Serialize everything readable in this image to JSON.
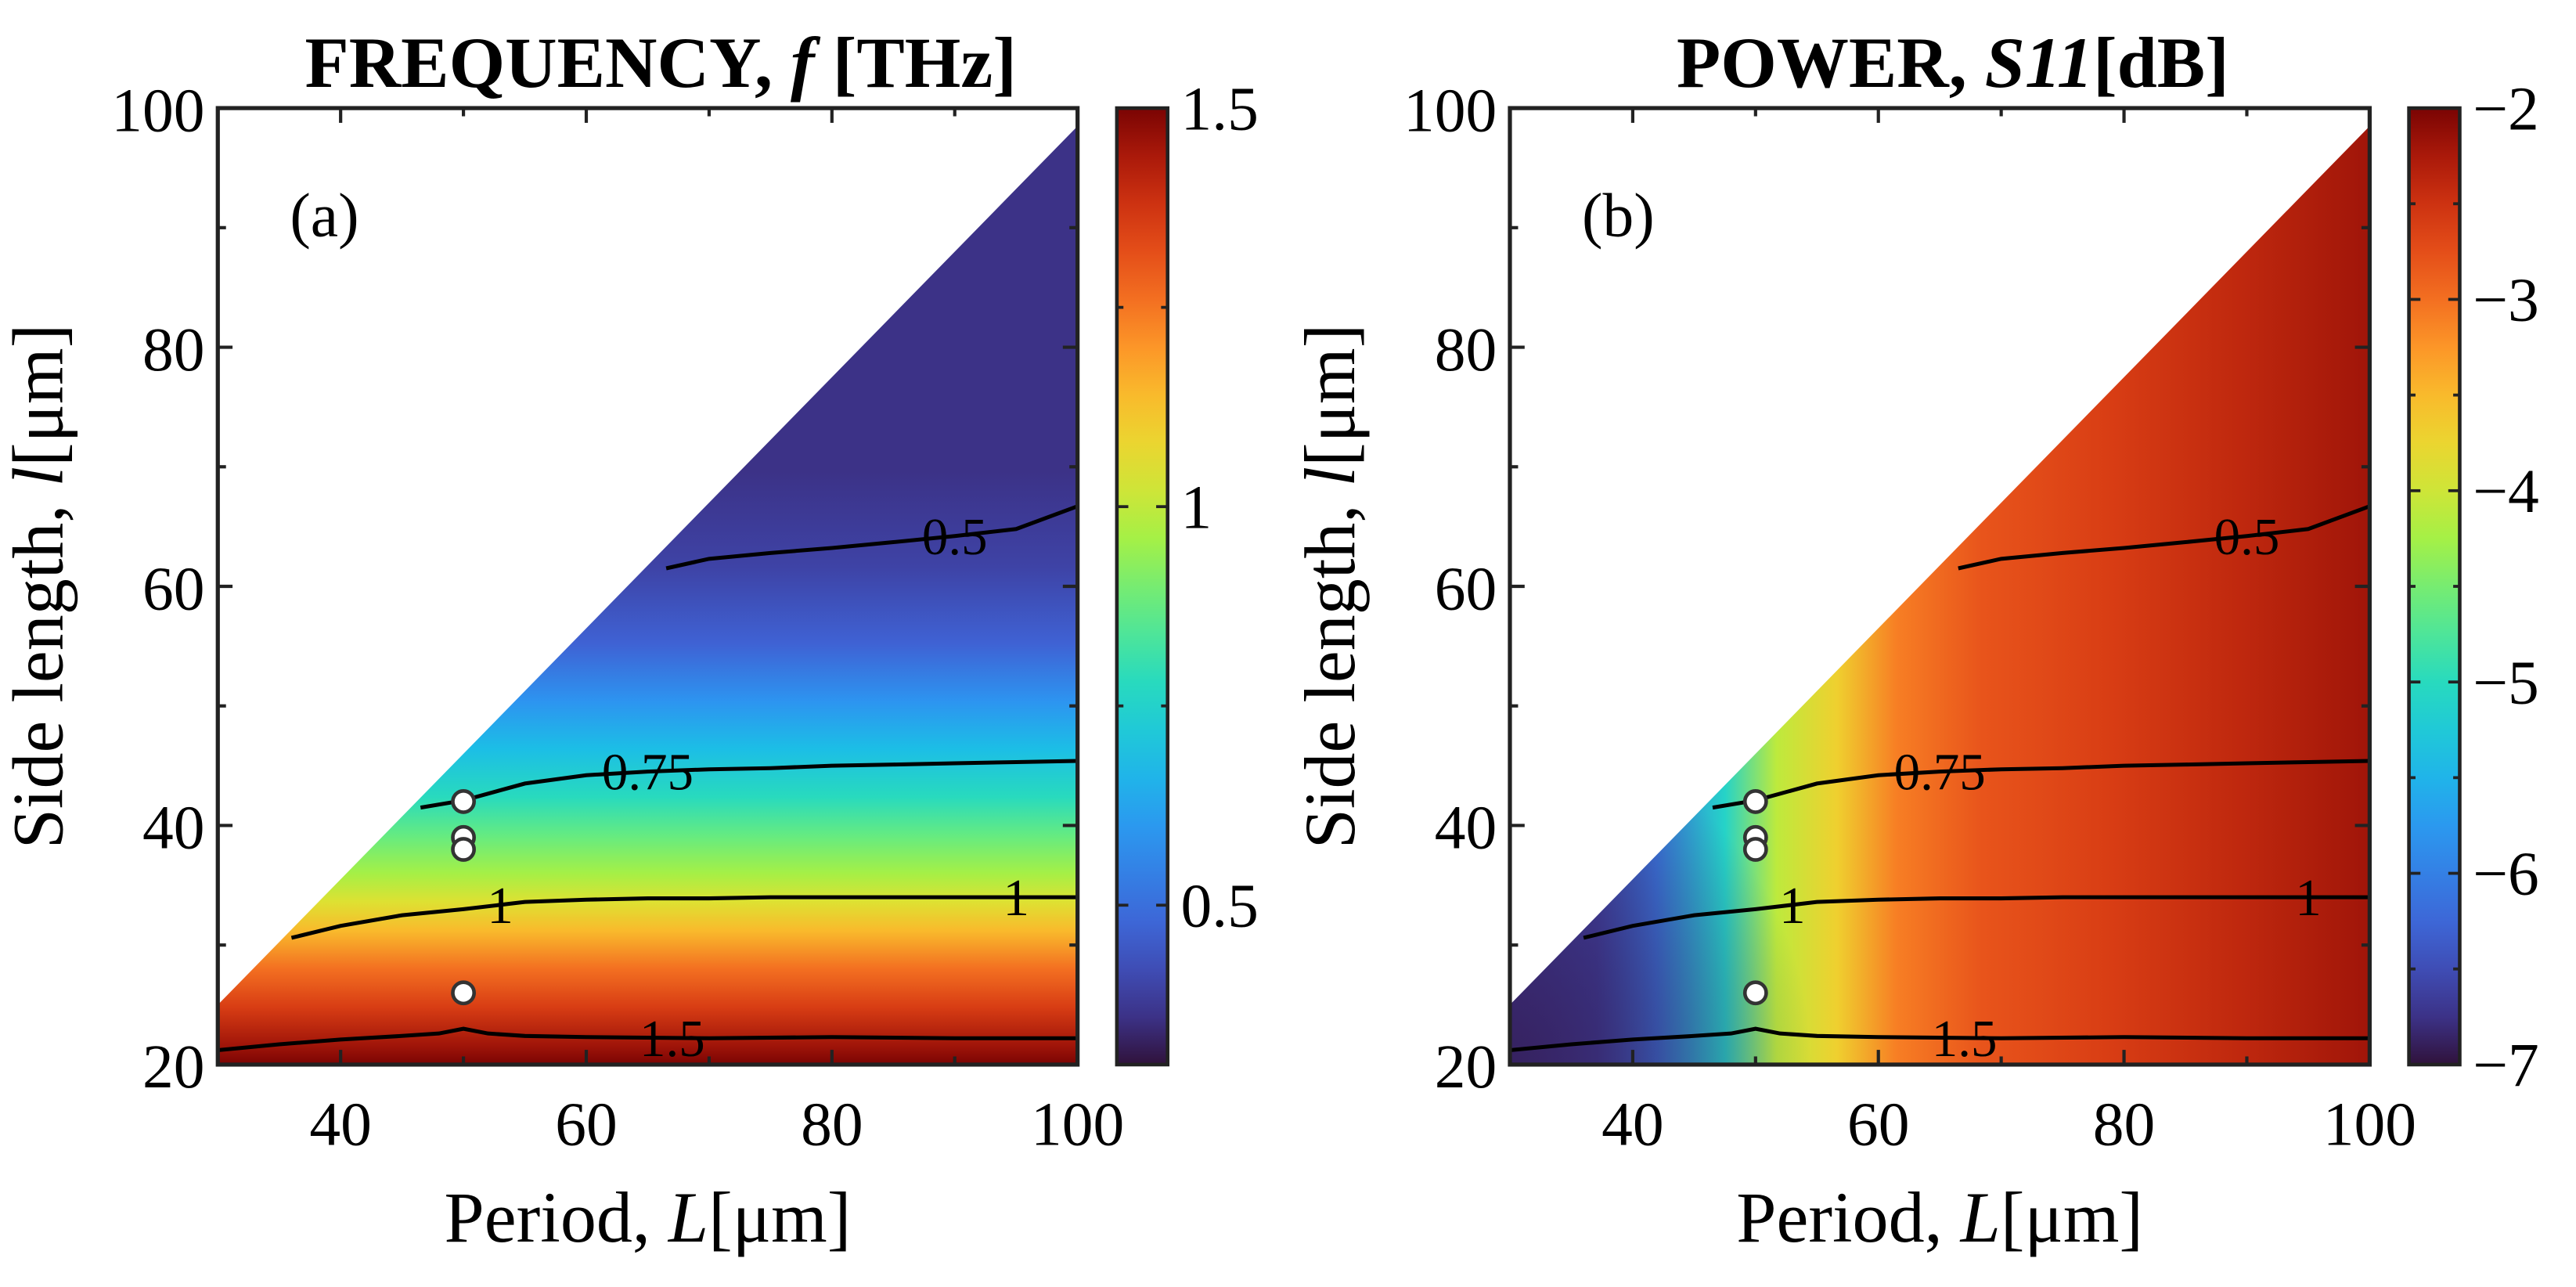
{
  "chart_data": [
    {
      "type": "heatmap",
      "panel_label": "(a)",
      "title": {
        "text": "FREQUENCY, ",
        "symbol": "f",
        "unit": " [THz]"
      },
      "xlabel": {
        "text": "Period, ",
        "symbol": "L",
        "unit": "[μm]"
      },
      "ylabel": {
        "text": "Side length, ",
        "symbol": "l",
        "unit": "[μm]"
      },
      "xlim": [
        30,
        100
      ],
      "ylim": [
        20,
        100
      ],
      "xticks": [
        40,
        60,
        80,
        100
      ],
      "yticks": [
        20,
        40,
        60,
        80,
        100
      ],
      "domain": "region below line l = 1.05*L - 6.5",
      "colorbar": {
        "min": 0.3,
        "max": 1.5,
        "ticks": [
          {
            "value": 0.5,
            "label": "0.5"
          },
          {
            "value": 1.0,
            "label": "1"
          },
          {
            "value": 1.5,
            "label": "1.5"
          }
        ],
        "colormap": "turbo"
      },
      "contours": [
        {
          "label": "0.5",
          "label_at": 90,
          "points": [
            [
              66.5,
              61.5
            ],
            [
              70,
              62.3
            ],
            [
              75,
              62.8
            ],
            [
              80,
              63.2
            ],
            [
              85,
              63.7
            ],
            [
              90,
              64.2
            ],
            [
              95,
              64.8
            ],
            [
              100,
              66.7
            ]
          ]
        },
        {
          "label": "0.75",
          "label_at": 65,
          "points": [
            [
              46.5,
              41.5
            ],
            [
              50,
              42.1
            ],
            [
              55,
              43.5
            ],
            [
              60,
              44.2
            ],
            [
              65,
              44.5
            ],
            [
              70,
              44.7
            ],
            [
              75,
              44.8
            ],
            [
              80,
              45.0
            ],
            [
              85,
              45.1
            ],
            [
              90,
              45.2
            ],
            [
              95,
              45.3
            ],
            [
              100,
              45.4
            ]
          ]
        },
        {
          "label": "1",
          "label_at": 53,
          "points": [
            [
              36,
              30.6
            ],
            [
              40,
              31.6
            ],
            [
              45,
              32.5
            ],
            [
              50,
              33.0
            ],
            [
              55,
              33.6
            ],
            [
              60,
              33.8
            ],
            [
              65,
              33.9
            ],
            [
              70,
              33.9
            ],
            [
              75,
              34.0
            ],
            [
              80,
              34.0
            ],
            [
              85,
              34.0
            ],
            [
              90,
              34.0
            ],
            [
              95,
              34.0
            ],
            [
              100,
              34.0
            ]
          ]
        },
        {
          "label": "1",
          "label_at": 95,
          "points": []
        },
        {
          "label": "1.5",
          "label_at": 67,
          "points": [
            [
              30,
              21.2
            ],
            [
              35,
              21.7
            ],
            [
              40,
              22.1
            ],
            [
              45,
              22.4
            ],
            [
              48,
              22.6
            ],
            [
              50,
              23.0
            ],
            [
              52,
              22.6
            ],
            [
              55,
              22.4
            ],
            [
              60,
              22.3
            ],
            [
              70,
              22.2
            ],
            [
              80,
              22.3
            ],
            [
              90,
              22.2
            ],
            [
              100,
              22.2
            ]
          ]
        }
      ],
      "markers": [
        {
          "x": 50,
          "y": 42
        },
        {
          "x": 50,
          "y": 39
        },
        {
          "x": 50,
          "y": 38
        },
        {
          "x": 50,
          "y": 26
        }
      ]
    },
    {
      "type": "heatmap",
      "panel_label": "(b)",
      "title": {
        "text": "POWER, ",
        "symbol": "S11",
        "unit": "[dB]"
      },
      "xlabel": {
        "text": "Period, ",
        "symbol": "L",
        "unit": "[μm]"
      },
      "ylabel": {
        "text": "Side length, ",
        "symbol": "l",
        "unit": "[μm]"
      },
      "xlim": [
        30,
        100
      ],
      "ylim": [
        20,
        100
      ],
      "xticks": [
        40,
        60,
        80,
        100
      ],
      "yticks": [
        20,
        40,
        60,
        80,
        100
      ],
      "domain": "region below line l = 1.05*L - 6.5",
      "colorbar": {
        "min": -7,
        "max": -2,
        "ticks": [
          {
            "value": -2,
            "label": "−2"
          },
          {
            "value": -3,
            "label": "−3"
          },
          {
            "value": -4,
            "label": "−4"
          },
          {
            "value": -5,
            "label": "−5"
          },
          {
            "value": -6,
            "label": "−6"
          },
          {
            "value": -7,
            "label": "−7"
          }
        ],
        "colormap": "turbo"
      },
      "contours": [
        {
          "label": "0.5",
          "label_at": 90,
          "points": [
            [
              66.5,
              61.5
            ],
            [
              70,
              62.3
            ],
            [
              75,
              62.8
            ],
            [
              80,
              63.2
            ],
            [
              85,
              63.7
            ],
            [
              90,
              64.2
            ],
            [
              95,
              64.8
            ],
            [
              100,
              66.7
            ]
          ]
        },
        {
          "label": "0.75",
          "label_at": 65,
          "points": [
            [
              46.5,
              41.5
            ],
            [
              50,
              42.1
            ],
            [
              55,
              43.5
            ],
            [
              60,
              44.2
            ],
            [
              65,
              44.5
            ],
            [
              70,
              44.7
            ],
            [
              75,
              44.8
            ],
            [
              80,
              45.0
            ],
            [
              85,
              45.1
            ],
            [
              90,
              45.2
            ],
            [
              95,
              45.3
            ],
            [
              100,
              45.4
            ]
          ]
        },
        {
          "label": "1",
          "label_at": 53,
          "points": [
            [
              36,
              30.6
            ],
            [
              40,
              31.6
            ],
            [
              45,
              32.5
            ],
            [
              50,
              33.0
            ],
            [
              55,
              33.6
            ],
            [
              60,
              33.8
            ],
            [
              65,
              33.9
            ],
            [
              70,
              33.9
            ],
            [
              75,
              34.0
            ],
            [
              80,
              34.0
            ],
            [
              85,
              34.0
            ],
            [
              90,
              34.0
            ],
            [
              95,
              34.0
            ],
            [
              100,
              34.0
            ]
          ]
        },
        {
          "label": "1",
          "label_at": 95,
          "points": []
        },
        {
          "label": "1.5",
          "label_at": 67,
          "points": [
            [
              30,
              21.2
            ],
            [
              35,
              21.7
            ],
            [
              40,
              22.1
            ],
            [
              45,
              22.4
            ],
            [
              48,
              22.6
            ],
            [
              50,
              23.0
            ],
            [
              52,
              22.6
            ],
            [
              55,
              22.4
            ],
            [
              60,
              22.3
            ],
            [
              70,
              22.2
            ],
            [
              80,
              22.3
            ],
            [
              90,
              22.2
            ],
            [
              100,
              22.2
            ]
          ]
        }
      ],
      "markers": [
        {
          "x": 50,
          "y": 42
        },
        {
          "x": 50,
          "y": 39
        },
        {
          "x": 50,
          "y": 38
        },
        {
          "x": 50,
          "y": 26
        }
      ]
    }
  ]
}
